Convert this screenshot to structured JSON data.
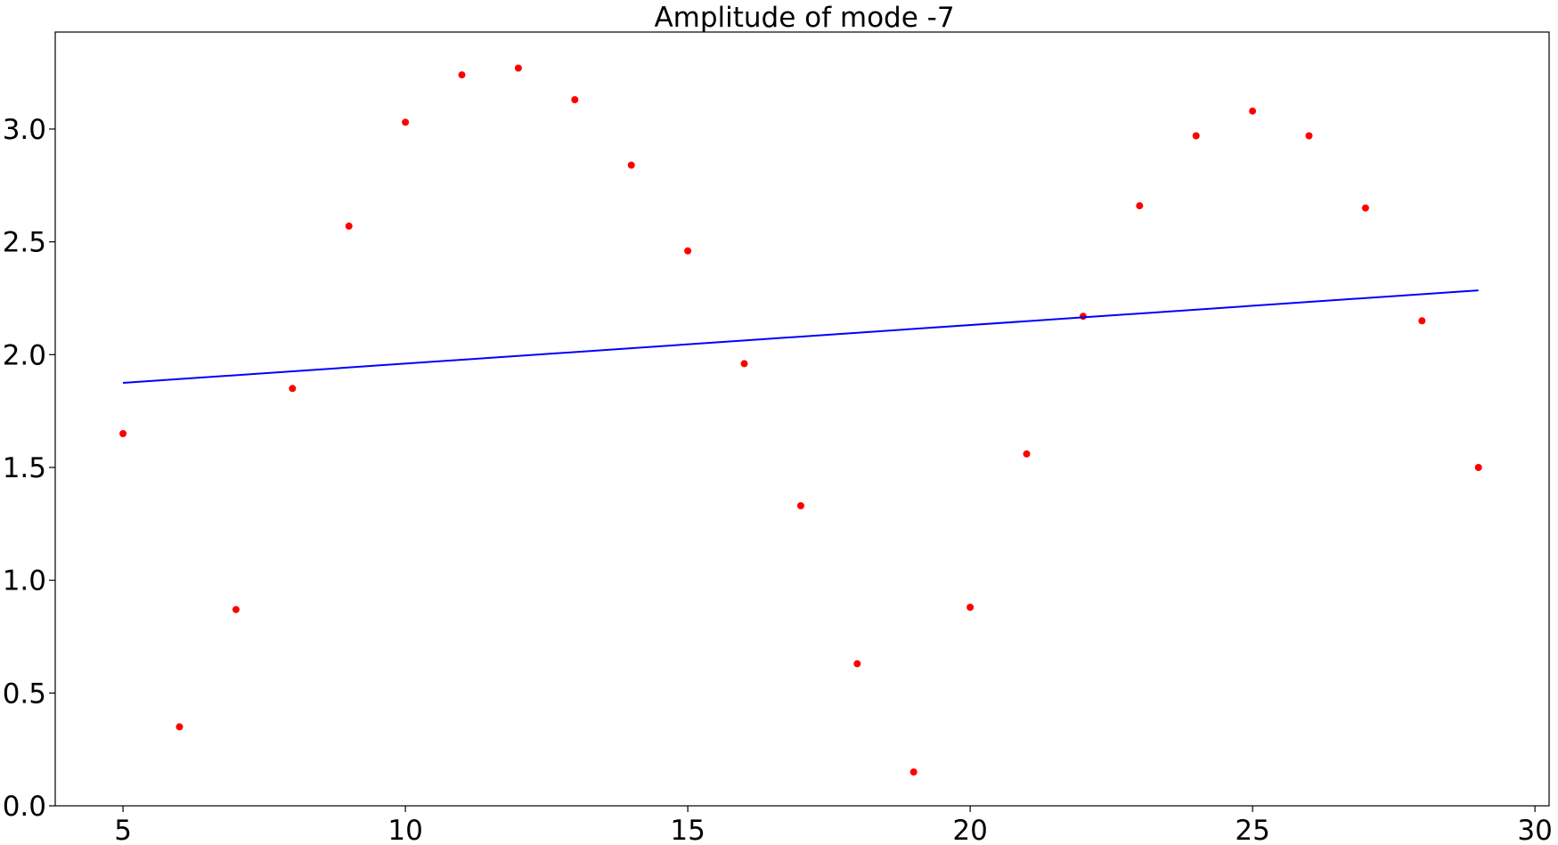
{
  "chart_data": {
    "type": "scatter",
    "title": "Amplitude of mode -7",
    "xlabel": "",
    "ylabel": "",
    "xlim": [
      3.8,
      30.25
    ],
    "ylim": [
      0,
      3.43
    ],
    "xticks": [
      5,
      10,
      15,
      20,
      25,
      30
    ],
    "yticks": [
      0.0,
      0.5,
      1.0,
      1.5,
      2.0,
      2.5,
      3.0
    ],
    "xtick_labels": [
      "5",
      "10",
      "15",
      "20",
      "25",
      "30"
    ],
    "ytick_labels": [
      "0.0",
      "0.5",
      "1.0",
      "1.5",
      "2.0",
      "2.5",
      "3.0"
    ],
    "grid": false,
    "series": [
      {
        "kind": "points",
        "color": "#ff0000",
        "x": [
          5,
          6,
          7,
          8,
          9,
          10,
          11,
          12,
          13,
          14,
          15,
          16,
          17,
          18,
          19,
          20,
          21,
          22,
          23,
          24,
          25,
          26,
          27,
          28,
          29
        ],
        "y": [
          1.65,
          0.35,
          0.87,
          1.85,
          2.57,
          3.03,
          3.24,
          3.27,
          3.13,
          2.84,
          2.46,
          1.96,
          1.33,
          0.63,
          0.15,
          0.88,
          1.56,
          2.17,
          2.66,
          2.97,
          3.08,
          2.97,
          2.65,
          2.15,
          1.5
        ]
      },
      {
        "kind": "line",
        "color": "#0000ff",
        "x": [
          5,
          29
        ],
        "y": [
          1.875,
          2.285
        ]
      }
    ]
  }
}
